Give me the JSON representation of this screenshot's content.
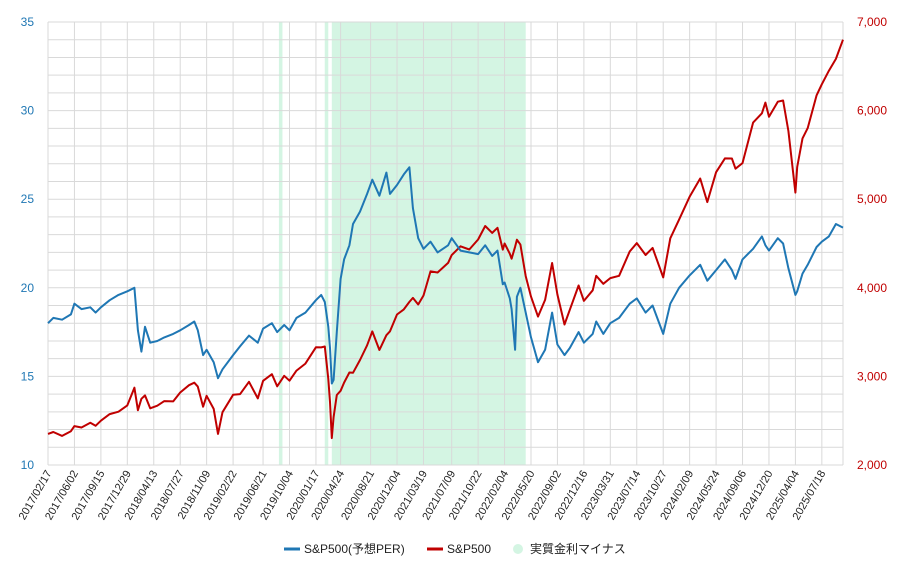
{
  "colors": {
    "per_line": "#1f77b4",
    "sp500_line": "#c00000",
    "negative_real_rate_band": "#d4f5e3",
    "grid": "#d9d9d9",
    "left_axis_text": "#1f77b4",
    "right_axis_text": "#c00000"
  },
  "legend": [
    {
      "label": "S&P500(予想PER)",
      "type": "line",
      "color": "#1f77b4"
    },
    {
      "label": "S&P500",
      "type": "line",
      "color": "#c00000"
    },
    {
      "label": "実質金利マイナス",
      "type": "dot",
      "color": "#d4f5e3"
    }
  ],
  "chart_data": {
    "type": "line",
    "grid": true,
    "legend_position": "bottom",
    "x_tick_labels": [
      "2017/02/17",
      "2017/06/02",
      "2017/09/15",
      "2017/12/29",
      "2018/04/13",
      "2018/07/27",
      "2018/11/09",
      "2019/02/22",
      "2019/06/21",
      "2019/10/04",
      "2020/01/17",
      "2020/04/24",
      "2020/08/21",
      "2020/12/04",
      "2021/03/19",
      "2021/07/09",
      "2021/10/22",
      "2022/02/04",
      "2022/05/20",
      "2022/09/02",
      "2022/12/16",
      "2023/03/31",
      "2023/07/14",
      "2023/10/27",
      "2024/02/09",
      "2024/05/24",
      "2024/09/06",
      "2024/12/20",
      "2025/04/04",
      "2025/07/18"
    ],
    "y_left": {
      "range": [
        10,
        35
      ],
      "ticks": [
        "10",
        "15",
        "20",
        "25",
        "30",
        "35"
      ]
    },
    "y_right": {
      "range": [
        2000,
        7000
      ],
      "ticks": [
        "2,000",
        "3,000",
        "4,000",
        "5,000",
        "6,000",
        "7,000"
      ]
    },
    "x_range": [
      "2017/02/17",
      "2025/10/10"
    ],
    "negative_real_rate_periods": [
      [
        "2019/08/23",
        "2019/09/06"
      ],
      [
        "2020/02/21",
        "2020/03/06"
      ],
      [
        "2020/03/20",
        "2022/04/29"
      ]
    ],
    "series": [
      {
        "name": "S&P500(予想PER)",
        "axis": "left",
        "points": [
          [
            "2017/02/17",
            18.0
          ],
          [
            "2017/03/10",
            18.3
          ],
          [
            "2017/04/14",
            18.2
          ],
          [
            "2017/05/19",
            18.5
          ],
          [
            "2017/06/02",
            19.1
          ],
          [
            "2017/06/30",
            18.8
          ],
          [
            "2017/08/04",
            18.9
          ],
          [
            "2017/08/25",
            18.6
          ],
          [
            "2017/09/15",
            18.9
          ],
          [
            "2017/10/20",
            19.3
          ],
          [
            "2017/11/24",
            19.6
          ],
          [
            "2017/12/29",
            19.8
          ],
          [
            "2018/01/26",
            20.0
          ],
          [
            "2018/02/09",
            17.6
          ],
          [
            "2018/02/23",
            16.4
          ],
          [
            "2018/03/09",
            17.8
          ],
          [
            "2018/03/30",
            16.9
          ],
          [
            "2018/04/27",
            17.0
          ],
          [
            "2018/05/25",
            17.2
          ],
          [
            "2018/06/29",
            17.4
          ],
          [
            "2018/07/27",
            17.6
          ],
          [
            "2018/08/31",
            17.9
          ],
          [
            "2018/09/21",
            18.1
          ],
          [
            "2018/10/05",
            17.6
          ],
          [
            "2018/10/26",
            16.2
          ],
          [
            "2018/11/09",
            16.5
          ],
          [
            "2018/12/07",
            15.8
          ],
          [
            "2018/12/24",
            14.9
          ],
          [
            "2019/01/11",
            15.4
          ],
          [
            "2019/02/22",
            16.2
          ],
          [
            "2019/03/22",
            16.7
          ],
          [
            "2019/04/26",
            17.3
          ],
          [
            "2019/05/31",
            16.9
          ],
          [
            "2019/06/21",
            17.7
          ],
          [
            "2019/07/26",
            18.0
          ],
          [
            "2019/08/16",
            17.5
          ],
          [
            "2019/09/13",
            17.9
          ],
          [
            "2019/10/04",
            17.6
          ],
          [
            "2019/11/01",
            18.3
          ],
          [
            "2019/12/06",
            18.6
          ],
          [
            "2020/01/17",
            19.3
          ],
          [
            "2020/02/07",
            19.6
          ],
          [
            "2020/02/21",
            19.2
          ],
          [
            "2020/03/06",
            17.8
          ],
          [
            "2020/03/13",
            16.6
          ],
          [
            "2020/03/20",
            14.6
          ],
          [
            "2020/03/27",
            14.8
          ],
          [
            "2020/04/09",
            17.5
          ],
          [
            "2020/04/24",
            20.5
          ],
          [
            "2020/05/08",
            21.6
          ],
          [
            "2020/05/29",
            22.4
          ],
          [
            "2020/06/12",
            23.6
          ],
          [
            "2020/07/10",
            24.3
          ],
          [
            "2020/08/07",
            25.3
          ],
          [
            "2020/08/28",
            26.1
          ],
          [
            "2020/09/25",
            25.2
          ],
          [
            "2020/10/23",
            26.5
          ],
          [
            "2020/11/06",
            25.3
          ],
          [
            "2020/12/04",
            25.8
          ],
          [
            "2020/12/31",
            26.4
          ],
          [
            "2021/01/22",
            26.8
          ],
          [
            "2021/02/05",
            24.5
          ],
          [
            "2021/02/26",
            22.8
          ],
          [
            "2021/03/19",
            22.2
          ],
          [
            "2021/04/16",
            22.6
          ],
          [
            "2021/05/14",
            22.0
          ],
          [
            "2021/06/25",
            22.4
          ],
          [
            "2021/07/09",
            22.8
          ],
          [
            "2021/08/13",
            22.1
          ],
          [
            "2021/09/17",
            22.0
          ],
          [
            "2021/10/22",
            21.9
          ],
          [
            "2021/11/19",
            22.4
          ],
          [
            "2021/12/17",
            21.8
          ],
          [
            "2022/01/07",
            22.1
          ],
          [
            "2022/01/28",
            20.2
          ],
          [
            "2022/02/04",
            20.3
          ],
          [
            "2022/02/25",
            19.4
          ],
          [
            "2022/03/04",
            18.8
          ],
          [
            "2022/03/18",
            16.5
          ],
          [
            "2022/03/25",
            19.5
          ],
          [
            "2022/04/08",
            20.0
          ],
          [
            "2022/04/29",
            18.6
          ],
          [
            "2022/05/20",
            17.2
          ],
          [
            "2022/06/17",
            15.8
          ],
          [
            "2022/07/15",
            16.5
          ],
          [
            "2022/08/12",
            18.6
          ],
          [
            "2022/09/02",
            16.8
          ],
          [
            "2022/09/30",
            16.2
          ],
          [
            "2022/10/21",
            16.6
          ],
          [
            "2022/11/25",
            17.5
          ],
          [
            "2022/12/16",
            16.9
          ],
          [
            "2023/01/20",
            17.4
          ],
          [
            "2023/02/03",
            18.1
          ],
          [
            "2023/03/03",
            17.4
          ],
          [
            "2023/03/31",
            18.0
          ],
          [
            "2023/05/05",
            18.3
          ],
          [
            "2023/06/16",
            19.1
          ],
          [
            "2023/07/14",
            19.4
          ],
          [
            "2023/08/18",
            18.6
          ],
          [
            "2023/09/15",
            19.0
          ],
          [
            "2023/10/27",
            17.4
          ],
          [
            "2023/11/24",
            19.1
          ],
          [
            "2023/12/29",
            20.0
          ],
          [
            "2024/02/09",
            20.7
          ],
          [
            "2024/03/22",
            21.3
          ],
          [
            "2024/04/19",
            20.4
          ],
          [
            "2024/05/24",
            21.0
          ],
          [
            "2024/06/28",
            21.6
          ],
          [
            "2024/07/26",
            21.0
          ],
          [
            "2024/08/09",
            20.5
          ],
          [
            "2024/09/06",
            21.6
          ],
          [
            "2024/10/18",
            22.2
          ],
          [
            "2024/11/22",
            22.9
          ],
          [
            "2024/12/06",
            22.4
          ],
          [
            "2024/12/20",
            22.1
          ],
          [
            "2025/01/24",
            22.8
          ],
          [
            "2025/02/14",
            22.5
          ],
          [
            "2025/03/07",
            21.1
          ],
          [
            "2025/04/04",
            19.6
          ],
          [
            "2025/04/11",
            19.8
          ],
          [
            "2025/05/02",
            20.8
          ],
          [
            "2025/05/23",
            21.3
          ],
          [
            "2025/06/27",
            22.3
          ],
          [
            "2025/07/18",
            22.6
          ],
          [
            "2025/08/15",
            22.9
          ],
          [
            "2025/09/12",
            23.6
          ],
          [
            "2025/10/10",
            23.4
          ]
        ]
      },
      {
        "name": "S&P500",
        "axis": "right",
        "points": [
          [
            "2017/02/17",
            2351
          ],
          [
            "2017/03/10",
            2372
          ],
          [
            "2017/04/14",
            2328
          ],
          [
            "2017/05/19",
            2381
          ],
          [
            "2017/06/02",
            2439
          ],
          [
            "2017/06/30",
            2423
          ],
          [
            "2017/08/04",
            2476
          ],
          [
            "2017/08/25",
            2443
          ],
          [
            "2017/09/15",
            2500
          ],
          [
            "2017/10/20",
            2575
          ],
          [
            "2017/11/24",
            2602
          ],
          [
            "2017/12/29",
            2673
          ],
          [
            "2018/01/26",
            2872
          ],
          [
            "2018/02/09",
            2619
          ],
          [
            "2018/02/23",
            2747
          ],
          [
            "2018/03/09",
            2786
          ],
          [
            "2018/03/30",
            2640
          ],
          [
            "2018/04/27",
            2669
          ],
          [
            "2018/05/25",
            2721
          ],
          [
            "2018/06/29",
            2718
          ],
          [
            "2018/07/27",
            2818
          ],
          [
            "2018/08/31",
            2901
          ],
          [
            "2018/09/21",
            2929
          ],
          [
            "2018/10/05",
            2885
          ],
          [
            "2018/10/26",
            2658
          ],
          [
            "2018/11/09",
            2781
          ],
          [
            "2018/12/07",
            2633
          ],
          [
            "2018/12/24",
            2351
          ],
          [
            "2019/01/11",
            2596
          ],
          [
            "2019/02/22",
            2792
          ],
          [
            "2019/03/22",
            2800
          ],
          [
            "2019/04/26",
            2939
          ],
          [
            "2019/05/31",
            2752
          ],
          [
            "2019/06/21",
            2950
          ],
          [
            "2019/07/26",
            3025
          ],
          [
            "2019/08/16",
            2888
          ],
          [
            "2019/09/13",
            3007
          ],
          [
            "2019/10/04",
            2952
          ],
          [
            "2019/11/01",
            3066
          ],
          [
            "2019/12/06",
            3145
          ],
          [
            "2020/01/17",
            3329
          ],
          [
            "2020/02/07",
            3327
          ],
          [
            "2020/02/21",
            3337
          ],
          [
            "2020/03/06",
            2972
          ],
          [
            "2020/03/13",
            2711
          ],
          [
            "2020/03/20",
            2304
          ],
          [
            "2020/03/27",
            2541
          ],
          [
            "2020/04/09",
            2790
          ],
          [
            "2020/04/24",
            2837
          ],
          [
            "2020/05/08",
            2930
          ],
          [
            "2020/05/29",
            3044
          ],
          [
            "2020/06/12",
            3041
          ],
          [
            "2020/07/10",
            3185
          ],
          [
            "2020/08/07",
            3351
          ],
          [
            "2020/08/28",
            3508
          ],
          [
            "2020/09/25",
            3298
          ],
          [
            "2020/10/23",
            3465
          ],
          [
            "2020/11/06",
            3509
          ],
          [
            "2020/12/04",
            3699
          ],
          [
            "2020/12/31",
            3756
          ],
          [
            "2021/01/22",
            3841
          ],
          [
            "2021/02/05",
            3886
          ],
          [
            "2021/02/26",
            3811
          ],
          [
            "2021/03/19",
            3913
          ],
          [
            "2021/04/16",
            4185
          ],
          [
            "2021/05/14",
            4173
          ],
          [
            "2021/06/25",
            4281
          ],
          [
            "2021/07/09",
            4369
          ],
          [
            "2021/08/13",
            4468
          ],
          [
            "2021/09/17",
            4432
          ],
          [
            "2021/10/22",
            4545
          ],
          [
            "2021/11/19",
            4698
          ],
          [
            "2021/12/17",
            4620
          ],
          [
            "2022/01/07",
            4677
          ],
          [
            "2022/01/28",
            4431
          ],
          [
            "2022/02/04",
            4500
          ],
          [
            "2022/02/25",
            4385
          ],
          [
            "2022/03/04",
            4329
          ],
          [
            "2022/03/18",
            4463
          ],
          [
            "2022/03/25",
            4543
          ],
          [
            "2022/04/08",
            4488
          ],
          [
            "2022/04/29",
            4132
          ],
          [
            "2022/05/20",
            3901
          ],
          [
            "2022/06/17",
            3675
          ],
          [
            "2022/07/15",
            3863
          ],
          [
            "2022/08/12",
            4280
          ],
          [
            "2022/09/02",
            3924
          ],
          [
            "2022/09/30",
            3586
          ],
          [
            "2022/10/21",
            3752
          ],
          [
            "2022/11/25",
            4026
          ],
          [
            "2022/12/16",
            3852
          ],
          [
            "2023/01/20",
            3972
          ],
          [
            "2023/02/03",
            4136
          ],
          [
            "2023/03/03",
            4045
          ],
          [
            "2023/03/31",
            4109
          ],
          [
            "2023/05/05",
            4136
          ],
          [
            "2023/06/16",
            4410
          ],
          [
            "2023/07/14",
            4505
          ],
          [
            "2023/08/18",
            4370
          ],
          [
            "2023/09/15",
            4450
          ],
          [
            "2023/10/27",
            4117
          ],
          [
            "2023/11/24",
            4559
          ],
          [
            "2023/12/29",
            4770
          ],
          [
            "2024/02/09",
            5027
          ],
          [
            "2024/03/22",
            5234
          ],
          [
            "2024/04/19",
            4967
          ],
          [
            "2024/05/24",
            5305
          ],
          [
            "2024/06/28",
            5460
          ],
          [
            "2024/07/26",
            5459
          ],
          [
            "2024/08/09",
            5344
          ],
          [
            "2024/09/06",
            5408
          ],
          [
            "2024/10/18",
            5864
          ],
          [
            "2024/11/22",
            5969
          ],
          [
            "2024/12/06",
            6090
          ],
          [
            "2024/12/20",
            5930
          ],
          [
            "2025/01/24",
            6101
          ],
          [
            "2025/02/14",
            6114
          ],
          [
            "2025/03/07",
            5770
          ],
          [
            "2025/04/04",
            5074
          ],
          [
            "2025/04/11",
            5363
          ],
          [
            "2025/05/02",
            5686
          ],
          [
            "2025/05/23",
            5802
          ],
          [
            "2025/06/27",
            6173
          ],
          [
            "2025/07/18",
            6297
          ],
          [
            "2025/08/15",
            6450
          ],
          [
            "2025/09/12",
            6584
          ],
          [
            "2025/10/10",
            6800
          ]
        ]
      }
    ]
  }
}
